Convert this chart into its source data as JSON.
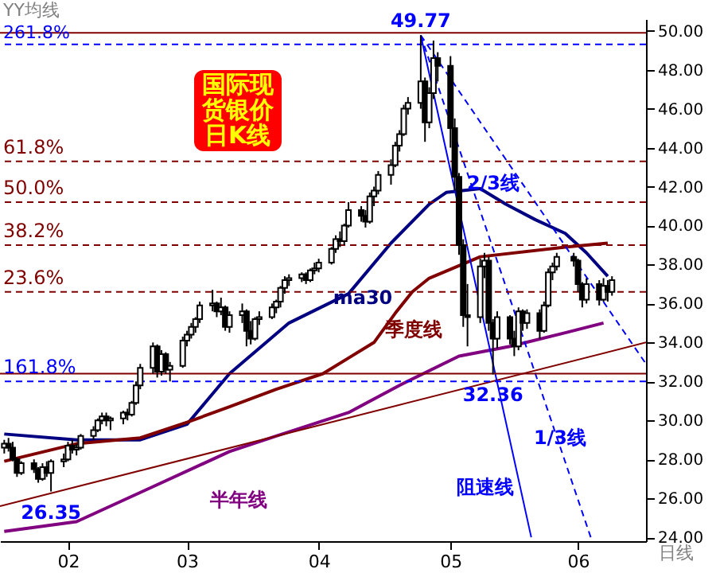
{
  "chart_data": {
    "type": "candlestick",
    "title": "国际现货银价日K线",
    "annotations": [
      "YY均线",
      "日线",
      {
        "text": "261.8%",
        "y": 49.3
      },
      {
        "text": "61.8%",
        "y": 43.3
      },
      {
        "text": "50.0%",
        "y": 41.2
      },
      {
        "text": "38.2%",
        "y": 39.0
      },
      {
        "text": "23.6%",
        "y": 36.6
      },
      {
        "text": "161.8%",
        "y": 32.0
      },
      {
        "text": "49.77",
        "x": "--04-25",
        "y": 49.77
      },
      {
        "text": "26.35",
        "x": "--01-28",
        "y": 26.35
      },
      {
        "text": "32.36",
        "x": "--05-12",
        "y": 32.36
      }
    ],
    "x": [
      "--01-17",
      "--01-18",
      "--01-19",
      "--01-20",
      "--01-21",
      "--01-24",
      "--01-25",
      "--01-26",
      "--01-27",
      "--01-28",
      "--01-31",
      "--02-01",
      "--02-02",
      "--02-03",
      "--02-04",
      "--02-07",
      "--02-08",
      "--02-09",
      "--02-10",
      "--02-11",
      "--02-14",
      "--02-15",
      "--02-16",
      "--02-17",
      "--02-18",
      "--02-21",
      "--02-22",
      "--02-23",
      "--02-24",
      "--02-25",
      "--02-28",
      "--03-01",
      "--03-02",
      "--03-03",
      "--03-04",
      "--03-07",
      "--03-08",
      "--03-09",
      "--03-10",
      "--03-11",
      "--03-14",
      "--03-15",
      "--03-16",
      "--03-17",
      "--03-18",
      "--03-21",
      "--03-22",
      "--03-23",
      "--03-24",
      "--03-25",
      "--03-28",
      "--03-29",
      "--03-30",
      "--03-31",
      "--04-01",
      "--04-04",
      "--04-05",
      "--04-06",
      "--04-07",
      "--04-08",
      "--04-11",
      "--04-12",
      "--04-13",
      "--04-14",
      "--04-15",
      "--04-18",
      "--04-19",
      "--04-20",
      "--04-21",
      "--04-22",
      "--04-25",
      "--04-26",
      "--04-27",
      "--04-28",
      "--04-29",
      "--05-02",
      "--05-03",
      "--05-04",
      "--05-05",
      "--05-06",
      "--05-09",
      "--05-10",
      "--05-11",
      "--05-12",
      "--05-13",
      "--05-16",
      "--05-17",
      "--05-18",
      "--05-19",
      "--05-20",
      "--05-23",
      "--05-24",
      "--05-25",
      "--05-26",
      "--05-27",
      "--05-31",
      "--06-01",
      "--06-02",
      "--06-03",
      "--06-06",
      "--06-07",
      "--06-08",
      "--06-09"
    ],
    "ohlc": [
      [
        28.6,
        29.0,
        28.3,
        28.8
      ],
      [
        28.8,
        29.1,
        28.4,
        28.6
      ],
      [
        28.6,
        28.9,
        27.9,
        28.0
      ],
      [
        28.0,
        28.1,
        27.1,
        27.3
      ],
      [
        27.3,
        27.9,
        27.2,
        27.8
      ],
      [
        27.8,
        28.0,
        27.3,
        27.5
      ],
      [
        27.5,
        27.6,
        26.8,
        27.0
      ],
      [
        27.0,
        27.8,
        26.9,
        27.6
      ],
      [
        27.6,
        27.9,
        27.1,
        27.3
      ],
      [
        27.3,
        28.0,
        26.35,
        27.9
      ],
      [
        27.9,
        28.3,
        27.6,
        28.0
      ],
      [
        28.0,
        28.9,
        27.9,
        28.7
      ],
      [
        28.7,
        29.0,
        28.3,
        28.5
      ],
      [
        28.5,
        28.8,
        28.2,
        28.6
      ],
      [
        28.6,
        29.3,
        28.5,
        29.2
      ],
      [
        29.2,
        29.7,
        29.0,
        29.5
      ],
      [
        29.5,
        30.1,
        29.4,
        30.0
      ],
      [
        30.0,
        30.4,
        29.8,
        30.2
      ],
      [
        30.2,
        30.4,
        29.7,
        30.0
      ],
      [
        30.0,
        30.2,
        29.5,
        30.1
      ],
      [
        30.1,
        30.5,
        29.8,
        30.4
      ],
      [
        30.4,
        30.6,
        30.0,
        30.3
      ],
      [
        30.3,
        31.0,
        30.2,
        30.9
      ],
      [
        30.9,
        32.0,
        30.8,
        31.8
      ],
      [
        31.8,
        32.9,
        31.6,
        32.7
      ],
      [
        32.7,
        34.0,
        32.4,
        33.8
      ],
      [
        33.8,
        33.9,
        32.2,
        32.5
      ],
      [
        32.5,
        33.6,
        32.3,
        33.4
      ],
      [
        33.4,
        33.5,
        32.4,
        32.6
      ],
      [
        32.6,
        33.0,
        32.0,
        32.8
      ],
      [
        32.8,
        34.3,
        32.7,
        34.1
      ],
      [
        34.1,
        34.6,
        33.8,
        34.4
      ],
      [
        34.4,
        35.0,
        34.2,
        34.8
      ],
      [
        34.8,
        35.3,
        34.5,
        35.2
      ],
      [
        35.2,
        36.1,
        35.0,
        35.9
      ],
      [
        35.9,
        36.7,
        35.6,
        36.0
      ],
      [
        36.0,
        36.1,
        35.3,
        35.6
      ],
      [
        35.6,
        36.3,
        35.4,
        35.8
      ],
      [
        35.8,
        35.9,
        34.6,
        34.8
      ],
      [
        34.8,
        35.6,
        34.5,
        35.4
      ],
      [
        35.4,
        36.0,
        35.0,
        35.6
      ],
      [
        35.6,
        35.7,
        33.8,
        34.6
      ],
      [
        34.6,
        35.1,
        33.9,
        34.2
      ],
      [
        34.2,
        35.3,
        34.1,
        35.2
      ],
      [
        35.2,
        35.6,
        34.9,
        35.3
      ],
      [
        35.3,
        36.0,
        35.2,
        35.8
      ],
      [
        35.8,
        36.2,
        35.5,
        36.1
      ],
      [
        36.1,
        36.9,
        35.8,
        36.8
      ],
      [
        36.8,
        37.4,
        36.5,
        37.2
      ],
      [
        37.2,
        37.5,
        36.9,
        37.3
      ],
      [
        37.3,
        37.6,
        37.1,
        37.5
      ],
      [
        37.5,
        37.6,
        37.0,
        37.2
      ],
      [
        37.2,
        37.8,
        37.1,
        37.7
      ],
      [
        37.7,
        38.1,
        37.5,
        37.8
      ],
      [
        37.8,
        38.3,
        37.6,
        38.1
      ],
      [
        38.1,
        38.9,
        38.0,
        38.8
      ],
      [
        38.8,
        39.5,
        38.6,
        39.3
      ],
      [
        39.3,
        39.7,
        38.9,
        39.2
      ],
      [
        39.2,
        40.1,
        39.0,
        40.0
      ],
      [
        40.0,
        41.2,
        39.9,
        40.8
      ],
      [
        40.8,
        41.0,
        40.2,
        40.5
      ],
      [
        40.5,
        40.8,
        39.9,
        40.2
      ],
      [
        40.2,
        41.7,
        40.1,
        41.5
      ],
      [
        41.5,
        42.0,
        41.0,
        41.8
      ],
      [
        41.8,
        42.8,
        41.6,
        42.6
      ],
      [
        42.6,
        43.4,
        42.1,
        43.1
      ],
      [
        43.1,
        44.3,
        43.0,
        44.1
      ],
      [
        44.1,
        44.9,
        43.8,
        44.7
      ],
      [
        44.7,
        46.2,
        44.6,
        46.0
      ],
      [
        46.0,
        46.6,
        45.7,
        46.3
      ],
      [
        46.3,
        49.77,
        46.0,
        47.4
      ],
      [
        47.4,
        47.6,
        44.3,
        45.3
      ],
      [
        45.3,
        47.1,
        45.0,
        46.8
      ],
      [
        46.8,
        49.5,
        46.5,
        48.6
      ],
      [
        48.6,
        48.9,
        47.4,
        48.2
      ],
      [
        48.2,
        48.7,
        44.0,
        45.0
      ],
      [
        45.0,
        45.5,
        41.8,
        42.5
      ],
      [
        42.5,
        42.7,
        38.5,
        39.0
      ],
      [
        39.0,
        39.3,
        34.8,
        35.4
      ],
      [
        35.4,
        37.0,
        33.8,
        35.3
      ],
      [
        35.3,
        38.3,
        35.0,
        37.9
      ],
      [
        37.9,
        38.6,
        37.3,
        38.2
      ],
      [
        38.2,
        38.4,
        34.6,
        35.0
      ],
      [
        35.0,
        35.2,
        32.36,
        34.2
      ],
      [
        34.2,
        35.6,
        33.7,
        35.3
      ],
      [
        35.3,
        35.4,
        33.9,
        34.2
      ],
      [
        34.2,
        34.6,
        33.3,
        33.8
      ],
      [
        33.8,
        35.8,
        33.6,
        35.6
      ],
      [
        35.6,
        35.7,
        34.6,
        35.0
      ],
      [
        35.0,
        35.7,
        34.7,
        35.5
      ],
      [
        35.5,
        35.7,
        34.2,
        34.6
      ],
      [
        34.6,
        36.1,
        34.5,
        35.9
      ],
      [
        35.9,
        37.8,
        35.8,
        37.6
      ],
      [
        37.6,
        38.1,
        37.2,
        37.9
      ],
      [
        37.9,
        38.6,
        37.7,
        38.4
      ],
      [
        38.4,
        38.6,
        37.9,
        38.2
      ],
      [
        38.2,
        38.3,
        36.6,
        37.0
      ],
      [
        37.0,
        37.1,
        35.8,
        36.2
      ],
      [
        36.2,
        37.3,
        36.0,
        37.0
      ],
      [
        37.0,
        37.2,
        35.9,
        36.2
      ],
      [
        36.2,
        37.3,
        36.1,
        36.9
      ],
      [
        36.9,
        37.2,
        36.1,
        36.6
      ],
      [
        36.6,
        37.4,
        36.4,
        37.2
      ]
    ],
    "series": [
      {
        "name": "ma30",
        "type": "line",
        "color": "#000080",
        "x": [
          "--01-17",
          "--02-03",
          "--02-18",
          "--03-01",
          "--03-11",
          "--03-25",
          "--04-08",
          "--04-18",
          "--04-27",
          "--05-01",
          "--05-09",
          "--05-15",
          "--05-22",
          "--05-29",
          "--06-03",
          "--06-08"
        ],
        "values": [
          29.3,
          29.0,
          29.0,
          29.8,
          32.4,
          35.0,
          36.5,
          39.1,
          41.1,
          41.7,
          41.9,
          41.1,
          40.3,
          39.6,
          38.6,
          37.4
        ]
      },
      {
        "name": "季度线",
        "type": "line",
        "color": "#800000",
        "x": [
          "--01-17",
          "--02-03",
          "--02-18",
          "--03-01",
          "--03-11",
          "--03-22",
          "--04-02",
          "--04-08",
          "--04-14",
          "--04-19",
          "--04-23",
          "--04-27",
          "--05-09",
          "--05-29",
          "--06-08"
        ],
        "values": [
          27.9,
          28.8,
          29.1,
          29.9,
          30.7,
          31.6,
          32.4,
          33.2,
          34.0,
          35.5,
          36.6,
          37.3,
          38.4,
          38.9,
          39.1
        ]
      },
      {
        "name": "半年线",
        "type": "line",
        "color": "#800080",
        "x": [
          "--01-17",
          "--02-03",
          "--02-21",
          "--03-11",
          "--03-22",
          "--04-08",
          "--04-20",
          "--05-04",
          "--05-16",
          "--05-29",
          "--06-07"
        ],
        "values": [
          24.3,
          24.8,
          26.6,
          28.4,
          29.2,
          30.4,
          31.8,
          33.3,
          33.8,
          34.5,
          35.0
        ]
      },
      {
        "type": "line",
        "color": "#800000",
        "x": [
          "--01-16",
          "--06-17"
        ],
        "values": [
          25.6,
          34.0
        ]
      },
      {
        "name": "阻速线",
        "type": "line",
        "color": "#0000ff",
        "x": [
          "--04-25",
          "--05-21"
        ],
        "values": [
          49.77,
          24.0
        ]
      },
      {
        "name": "1/3线",
        "type": "line",
        "color": "#0000ff",
        "line_style": "dashed",
        "x": [
          "--04-25",
          "--06-04"
        ],
        "values": [
          49.77,
          24.0
        ]
      },
      {
        "name": "2/3线",
        "type": "line",
        "color": "#0000ff",
        "line_style": "dashed",
        "x": [
          "--04-25",
          "--06-17"
        ],
        "values": [
          49.77,
          32.9
        ]
      }
    ],
    "ref_lines": [
      {
        "axis": "y",
        "value": 49.9,
        "color": "#800000",
        "line_style": "solid"
      },
      {
        "axis": "y",
        "value": 49.3,
        "color": "#0000ff",
        "line_style": "dashed"
      },
      {
        "axis": "y",
        "value": 43.3,
        "color": "#800000",
        "line_style": "dashed"
      },
      {
        "axis": "y",
        "value": 41.2,
        "color": "#800000",
        "line_style": "dashed"
      },
      {
        "axis": "y",
        "value": 39.0,
        "color": "#800000",
        "line_style": "dashed"
      },
      {
        "axis": "y",
        "value": 36.6,
        "color": "#800000",
        "line_style": "dashed"
      },
      {
        "axis": "y",
        "value": 32.4,
        "color": "#800000",
        "line_style": "solid"
      },
      {
        "axis": "y",
        "value": 32.0,
        "color": "#0000ff",
        "line_style": "dashed"
      }
    ],
    "xlim": [
      "--01-16",
      "--06-17"
    ],
    "xticks": [
      {
        "value": "--02-01",
        "label": "02"
      },
      {
        "value": "--03-01",
        "label": "03"
      },
      {
        "value": "--04-01",
        "label": "04"
      },
      {
        "value": "--05-02",
        "label": "05"
      },
      {
        "value": "--06-01",
        "label": "06"
      }
    ],
    "ylim": [
      23.8,
      50.6
    ],
    "yticks": [
      {
        "value": 24,
        "label": "24.00"
      },
      {
        "value": 26,
        "label": "26.00"
      },
      {
        "value": 28,
        "label": "28.00"
      },
      {
        "value": 30,
        "label": "30.00"
      },
      {
        "value": 32,
        "label": "32.00"
      },
      {
        "value": 34,
        "label": "34.00"
      },
      {
        "value": 36,
        "label": "36.00"
      },
      {
        "value": 38,
        "label": "38.00"
      },
      {
        "value": 40,
        "label": "40.00"
      },
      {
        "value": 42,
        "label": "42.00"
      },
      {
        "value": 44,
        "label": "44.00"
      },
      {
        "value": 46,
        "label": "46.00"
      },
      {
        "value": 48,
        "label": "48.00"
      },
      {
        "value": 50,
        "label": "50.00"
      }
    ]
  }
}
